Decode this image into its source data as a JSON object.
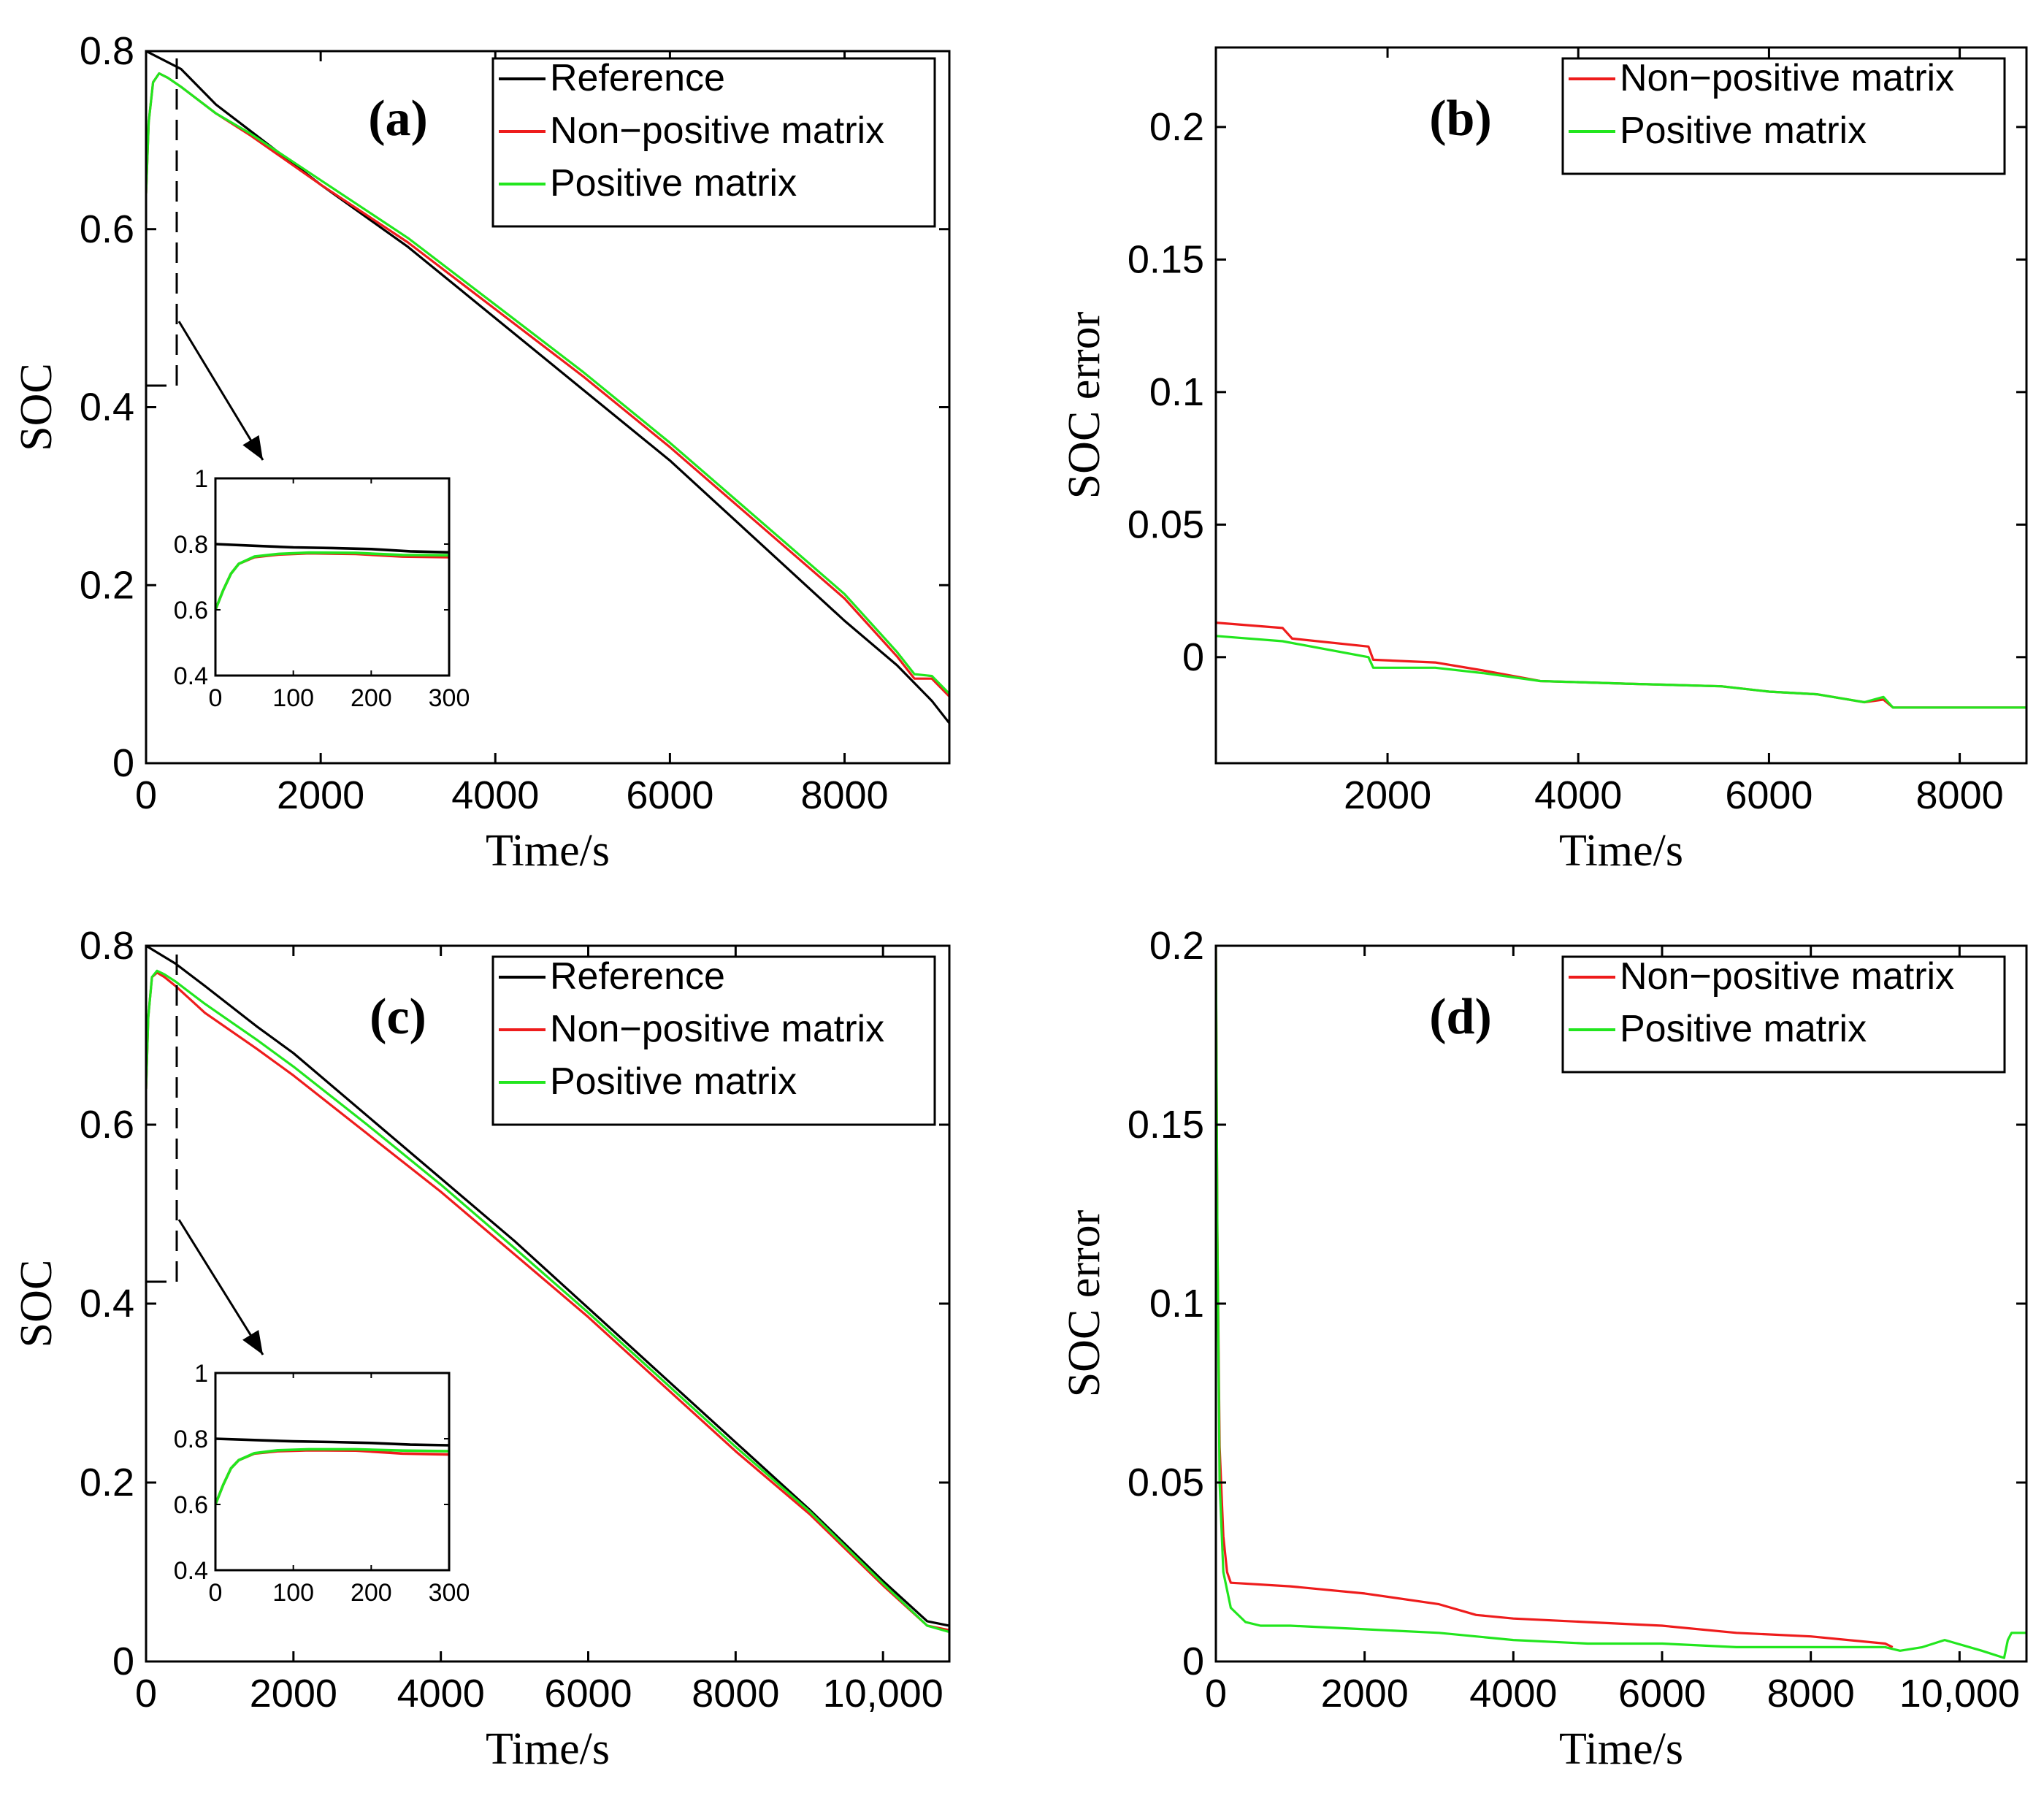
{
  "colors": {
    "reference": "#000000",
    "non_positive": "#ee1c1c",
    "positive": "#22e61e"
  },
  "chart_data": [
    {
      "id": "a",
      "type": "line",
      "panel_label": "(a)",
      "xlabel": "Time/s",
      "ylabel": "SOC",
      "xlim": [
        0,
        9200
      ],
      "ylim": [
        0,
        0.8
      ],
      "xticks": [
        0,
        2000,
        4000,
        6000,
        8000
      ],
      "xtick_labels": [
        "0",
        "2000",
        "4000",
        "6000",
        "8000"
      ],
      "yticks": [
        0,
        0.2,
        0.4,
        0.6,
        0.8
      ],
      "ytick_labels": [
        "0",
        "0.2",
        "0.4",
        "0.6",
        "0.8"
      ],
      "legend": [
        "Reference",
        "Non−positive matrix",
        "Positive matrix"
      ],
      "legend_position": "top-right",
      "series": [
        {
          "name": "Reference",
          "color_key": "reference",
          "x": [
            0,
            200,
            400,
            800,
            1200,
            2000,
            3000,
            4000,
            5000,
            6000,
            7000,
            8000,
            8600,
            9000,
            9200
          ],
          "y": [
            0.8,
            0.79,
            0.78,
            0.74,
            0.71,
            0.65,
            0.58,
            0.5,
            0.42,
            0.34,
            0.25,
            0.16,
            0.11,
            0.07,
            0.045
          ]
        },
        {
          "name": "Non−positive matrix",
          "color_key": "non_positive",
          "x": [
            0,
            30,
            80,
            150,
            250,
            400,
            800,
            1200,
            2000,
            3000,
            4000,
            5000,
            6000,
            7000,
            8000,
            8600,
            8800,
            9000,
            9200
          ],
          "y": [
            0.64,
            0.72,
            0.765,
            0.775,
            0.77,
            0.76,
            0.73,
            0.705,
            0.65,
            0.585,
            0.51,
            0.435,
            0.355,
            0.27,
            0.185,
            0.12,
            0.095,
            0.095,
            0.075
          ]
        },
        {
          "name": "Positive matrix",
          "color_key": "positive",
          "x": [
            0,
            30,
            80,
            150,
            250,
            400,
            800,
            1200,
            2000,
            3000,
            4000,
            5000,
            6000,
            7000,
            8000,
            8600,
            8800,
            9000,
            9200
          ],
          "y": [
            0.64,
            0.72,
            0.765,
            0.775,
            0.77,
            0.76,
            0.73,
            0.707,
            0.655,
            0.59,
            0.515,
            0.44,
            0.36,
            0.275,
            0.19,
            0.125,
            0.1,
            0.098,
            0.078
          ]
        }
      ],
      "inset": {
        "xlim": [
          0,
          300
        ],
        "ylim": [
          0.4,
          1
        ],
        "xticks": [
          0,
          100,
          200,
          300
        ],
        "xtick_labels": [
          "0",
          "100",
          "200",
          "300"
        ],
        "yticks": [
          0.4,
          0.6,
          0.8,
          1
        ],
        "ytick_labels": [
          "0.4",
          "0.6",
          "0.8",
          "1"
        ],
        "series": [
          {
            "name": "Reference",
            "color_key": "reference",
            "x": [
              0,
              50,
              100,
              150,
              200,
              250,
              300
            ],
            "y": [
              0.8,
              0.795,
              0.79,
              0.788,
              0.785,
              0.778,
              0.775
            ]
          },
          {
            "name": "Non−positive matrix",
            "color_key": "non_positive",
            "x": [
              0,
              10,
              20,
              30,
              50,
              80,
              120,
              180,
              240,
              300
            ],
            "y": [
              0.6,
              0.66,
              0.71,
              0.74,
              0.76,
              0.768,
              0.772,
              0.77,
              0.762,
              0.76
            ]
          },
          {
            "name": "Positive matrix",
            "color_key": "positive",
            "x": [
              0,
              10,
              20,
              30,
              50,
              80,
              120,
              180,
              240,
              300
            ],
            "y": [
              0.6,
              0.66,
              0.71,
              0.74,
              0.762,
              0.77,
              0.774,
              0.773,
              0.767,
              0.766
            ]
          }
        ]
      }
    },
    {
      "id": "b",
      "type": "line",
      "panel_label": "(b)",
      "xlabel": "Time/s",
      "ylabel": "SOC error",
      "xlim": [
        200,
        8700
      ],
      "ylim": [
        -0.04,
        0.23
      ],
      "xticks": [
        2000,
        4000,
        6000,
        8000
      ],
      "xtick_labels": [
        "2000",
        "4000",
        "6000",
        "8000"
      ],
      "yticks": [
        0,
        0.05,
        0.1,
        0.15,
        0.2
      ],
      "ytick_labels": [
        "0",
        "0.05",
        "0.1",
        "0.15",
        "0.2"
      ],
      "legend": [
        "Non−positive matrix",
        "Positive matrix"
      ],
      "legend_position": "top-right",
      "series": [
        {
          "name": "Non−positive matrix",
          "color_key": "non_positive",
          "x": [
            200,
            900,
            1000,
            1800,
            1850,
            2500,
            3000,
            3600,
            4500,
            5500,
            6000,
            6500,
            7000,
            7200,
            7300,
            8000,
            8700
          ],
          "y": [
            0.013,
            0.011,
            0.007,
            0.004,
            -0.001,
            -0.002,
            -0.005,
            -0.009,
            -0.01,
            -0.011,
            -0.013,
            -0.014,
            -0.017,
            -0.016,
            -0.019,
            -0.019,
            -0.019
          ]
        },
        {
          "name": "Positive matrix",
          "color_key": "positive",
          "x": [
            200,
            900,
            1800,
            1850,
            2500,
            3000,
            3600,
            4500,
            5500,
            6000,
            6500,
            7000,
            7200,
            7300,
            8000,
            8700
          ],
          "y": [
            0.008,
            0.006,
            0.0,
            -0.004,
            -0.004,
            -0.006,
            -0.009,
            -0.01,
            -0.011,
            -0.013,
            -0.014,
            -0.017,
            -0.015,
            -0.019,
            -0.019,
            -0.019
          ]
        }
      ]
    },
    {
      "id": "c",
      "type": "line",
      "panel_label": "(c)",
      "xlabel": "Time/s",
      "ylabel": "SOC",
      "xlim": [
        0,
        10900
      ],
      "ylim": [
        0,
        0.8
      ],
      "xticks": [
        0,
        2000,
        4000,
        6000,
        8000,
        10000
      ],
      "xtick_labels": [
        "0",
        "2000",
        "4000",
        "6000",
        "8000",
        "10,000"
      ],
      "yticks": [
        0,
        0.2,
        0.4,
        0.6,
        0.8
      ],
      "ytick_labels": [
        "0",
        "0.2",
        "0.4",
        "0.6",
        "0.8"
      ],
      "legend": [
        "Reference",
        "Non−positive matrix",
        "Positive matrix"
      ],
      "legend_position": "top-right",
      "series": [
        {
          "name": "Reference",
          "color_key": "reference",
          "x": [
            0,
            200,
            400,
            800,
            1500,
            2000,
            3000,
            4000,
            5000,
            6000,
            7000,
            8000,
            9000,
            10000,
            10600,
            10900
          ],
          "y": [
            0.8,
            0.79,
            0.78,
            0.755,
            0.71,
            0.68,
            0.61,
            0.54,
            0.47,
            0.395,
            0.32,
            0.245,
            0.17,
            0.09,
            0.045,
            0.04
          ]
        },
        {
          "name": "Non−positive matrix",
          "color_key": "non_positive",
          "x": [
            0,
            30,
            80,
            150,
            250,
            400,
            800,
            1500,
            2000,
            3000,
            4000,
            5000,
            6000,
            7000,
            8000,
            9000,
            10000,
            10600,
            10900
          ],
          "y": [
            0.64,
            0.72,
            0.765,
            0.77,
            0.765,
            0.755,
            0.725,
            0.685,
            0.655,
            0.59,
            0.525,
            0.455,
            0.385,
            0.31,
            0.235,
            0.165,
            0.085,
            0.04,
            0.035
          ]
        },
        {
          "name": "Positive matrix",
          "color_key": "positive",
          "x": [
            0,
            30,
            80,
            150,
            250,
            400,
            800,
            1500,
            2000,
            3000,
            4000,
            5000,
            6000,
            7000,
            8000,
            9000,
            10000,
            10600,
            10900
          ],
          "y": [
            0.64,
            0.72,
            0.765,
            0.772,
            0.768,
            0.76,
            0.735,
            0.695,
            0.665,
            0.6,
            0.533,
            0.462,
            0.39,
            0.315,
            0.24,
            0.168,
            0.087,
            0.04,
            0.033
          ]
        }
      ],
      "inset": {
        "xlim": [
          0,
          300
        ],
        "ylim": [
          0.4,
          1
        ],
        "xticks": [
          0,
          100,
          200,
          300
        ],
        "xtick_labels": [
          "0",
          "100",
          "200",
          "300"
        ],
        "yticks": [
          0.4,
          0.6,
          0.8,
          1
        ],
        "ytick_labels": [
          "0.4",
          "0.6",
          "0.8",
          "1"
        ],
        "series": [
          {
            "name": "Reference",
            "color_key": "reference",
            "x": [
              0,
              50,
              100,
              150,
              200,
              250,
              300
            ],
            "y": [
              0.8,
              0.796,
              0.792,
              0.79,
              0.787,
              0.782,
              0.78
            ]
          },
          {
            "name": "Non−positive matrix",
            "color_key": "non_positive",
            "x": [
              0,
              10,
              20,
              30,
              50,
              80,
              120,
              180,
              240,
              300
            ],
            "y": [
              0.6,
              0.66,
              0.71,
              0.735,
              0.755,
              0.762,
              0.765,
              0.764,
              0.755,
              0.752
            ]
          },
          {
            "name": "Positive matrix",
            "color_key": "positive",
            "x": [
              0,
              10,
              20,
              30,
              50,
              80,
              120,
              180,
              240,
              300
            ],
            "y": [
              0.6,
              0.66,
              0.71,
              0.735,
              0.756,
              0.765,
              0.768,
              0.768,
              0.764,
              0.762
            ]
          }
        ]
      }
    },
    {
      "id": "d",
      "type": "line",
      "panel_label": "(d)",
      "xlabel": "Time/s",
      "ylabel": "SOC error",
      "xlim": [
        0,
        10900
      ],
      "ylim": [
        0,
        0.2
      ],
      "xticks": [
        0,
        2000,
        4000,
        6000,
        8000,
        10000
      ],
      "xtick_labels": [
        "0",
        "2000",
        "4000",
        "6000",
        "8000",
        "10,000"
      ],
      "yticks": [
        0,
        0.05,
        0.1,
        0.15,
        0.2
      ],
      "ytick_labels": [
        "0",
        "0.05",
        "0.1",
        "0.15",
        "0.2"
      ],
      "legend": [
        "Non−positive matrix",
        "Positive matrix"
      ],
      "legend_position": "top-right",
      "series": [
        {
          "name": "Non−positive matrix",
          "color_key": "non_positive",
          "x": [
            0,
            20,
            50,
            100,
            150,
            200,
            1000,
            2000,
            3000,
            3500,
            4000,
            5000,
            6000,
            7000,
            8000,
            9000,
            9100
          ],
          "y": [
            0.2,
            0.12,
            0.06,
            0.035,
            0.025,
            0.022,
            0.021,
            0.019,
            0.016,
            0.013,
            0.012,
            0.011,
            0.01,
            0.008,
            0.007,
            0.005,
            0.004
          ]
        },
        {
          "name": "Positive matrix",
          "color_key": "positive",
          "x": [
            0,
            20,
            50,
            100,
            200,
            400,
            600,
            1000,
            2000,
            3000,
            4000,
            5000,
            6000,
            7000,
            8000,
            9000,
            9200,
            9500,
            9800,
            10300,
            10600,
            10650,
            10700,
            10900
          ],
          "y": [
            0.2,
            0.12,
            0.05,
            0.025,
            0.015,
            0.011,
            0.01,
            0.01,
            0.009,
            0.008,
            0.006,
            0.005,
            0.005,
            0.004,
            0.004,
            0.004,
            0.003,
            0.004,
            0.006,
            0.003,
            0.001,
            0.006,
            0.008,
            0.008
          ]
        }
      ]
    }
  ]
}
